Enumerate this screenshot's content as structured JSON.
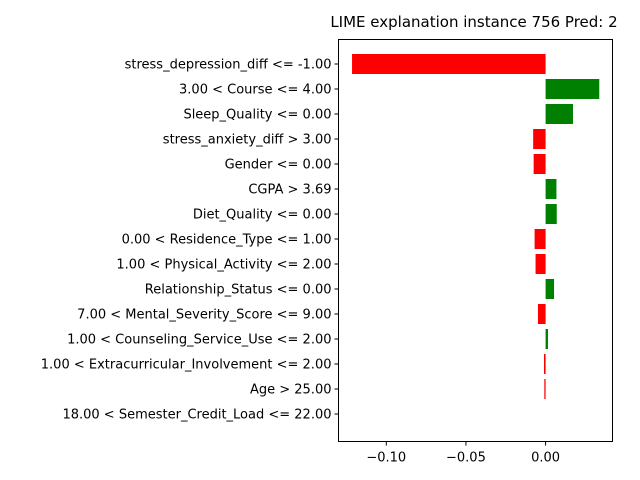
{
  "chart_data": {
    "type": "bar",
    "orientation": "horizontal",
    "title": "LIME explanation instance 756 Pred: 2",
    "xlabel": "",
    "ylabel": "",
    "xlim": [
      -0.13,
      0.042
    ],
    "xticks": [
      {
        "value": -0.1,
        "label": "−0.10"
      },
      {
        "value": -0.05,
        "label": "−0.05"
      },
      {
        "value": 0.0,
        "label": "0.00"
      }
    ],
    "categories": [
      "stress_depression_diff <= -1.00",
      "3.00 < Course <= 4.00",
      "Sleep_Quality <= 0.00",
      "stress_anxiety_diff > 3.00",
      "Gender <= 0.00",
      "CGPA > 3.69",
      "Diet_Quality <= 0.00",
      "0.00 < Residence_Type <= 1.00",
      "1.00 < Physical_Activity <= 2.00",
      "Relationship_Status <= 0.00",
      "7.00 < Mental_Severity_Score <= 9.00",
      "1.00 < Counseling_Service_Use <= 2.00",
      "1.00 < Extracurricular_Involvement <= 2.00",
      "Age > 25.00",
      "18.00 < Semester_Credit_Load <= 22.00"
    ],
    "values": [
      -0.1215,
      0.0337,
      0.0172,
      -0.0078,
      -0.0075,
      0.0068,
      0.007,
      -0.0069,
      -0.0063,
      0.0053,
      -0.0048,
      0.0015,
      -0.001,
      -0.0008,
      0.0
    ],
    "colors": {
      "positive": "#008000",
      "negative": "#ff0000"
    },
    "grid": false,
    "legend": "none"
  }
}
